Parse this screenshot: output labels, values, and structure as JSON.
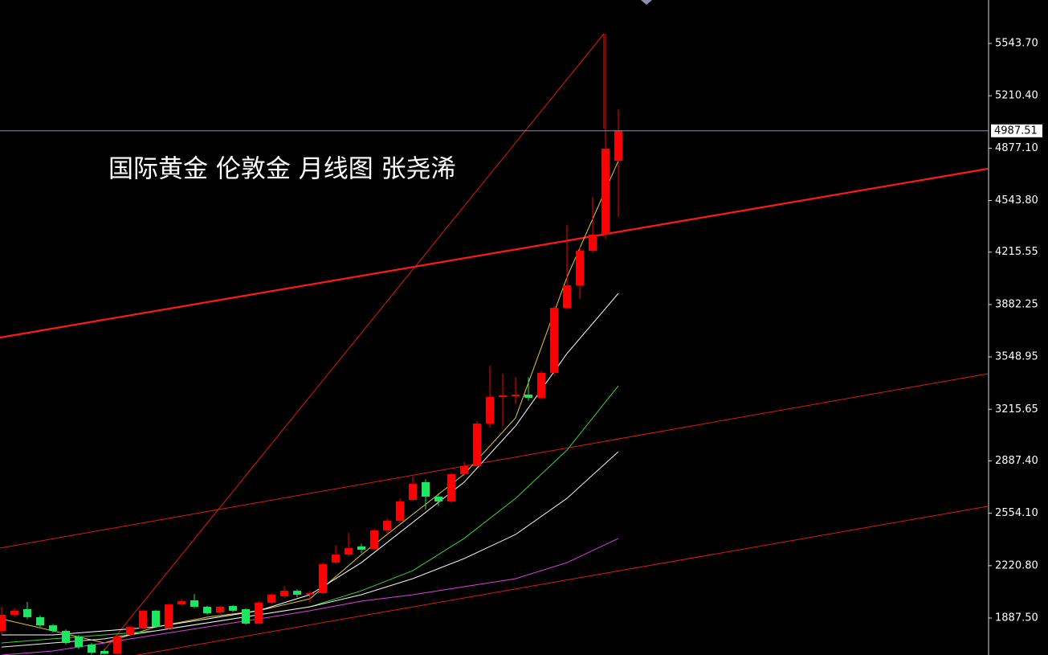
{
  "chart_data": {
    "type": "candlestick",
    "title": "国际黄金 伦敦金 月线图 张尧浠",
    "ylim": [
      1652.3,
      5819.8
    ],
    "yticks": [
      {
        "value": 5543.7,
        "label": "5543.70"
      },
      {
        "value": 5210.4,
        "label": "5210.40"
      },
      {
        "value": 4877.1,
        "label": "4877.10"
      },
      {
        "value": 4543.8,
        "label": "4543.80"
      },
      {
        "value": 4215.55,
        "label": "4215.55"
      },
      {
        "value": 3882.25,
        "label": "3882.25"
      },
      {
        "value": 3548.95,
        "label": "3548.95"
      },
      {
        "value": 3215.65,
        "label": "3215.65"
      },
      {
        "value": 2887.4,
        "label": "2887.40"
      },
      {
        "value": 2554.1,
        "label": "2554.10"
      },
      {
        "value": 2220.8,
        "label": "2220.80"
      },
      {
        "value": 1887.5,
        "label": "1887.50"
      }
    ],
    "current_price": 4987.51,
    "up_color": "#ff0000",
    "down_color": "#19e860",
    "open": [
      1806,
      1908,
      1944,
      1893,
      1841,
      1806,
      1770,
      1719,
      1678,
      1660,
      1780,
      1821,
      1934,
      1821,
      1974,
      2000,
      1959,
      1923,
      1964,
      1944,
      1852,
      1985,
      2026,
      2061,
      2036,
      2046,
      2240,
      2291,
      2343,
      2327,
      2445,
      2506,
      2639,
      2752,
      2660,
      2629,
      2803,
      2854,
      3125,
      3294,
      3299,
      3309,
      3289,
      3447,
      3861,
      4004,
      4224,
      4327,
      4797
    ],
    "high": [
      1959,
      1950,
      1990,
      1905,
      1850,
      1815,
      1780,
      1730,
      1690,
      1785,
      1840,
      1940,
      1940,
      1980,
      2010,
      2040,
      1965,
      1965,
      1970,
      1950,
      1995,
      2045,
      2090,
      2070,
      2060,
      2240,
      2350,
      2430,
      2360,
      2455,
      2520,
      2650,
      2790,
      2770,
      2680,
      2810,
      2880,
      3140,
      3493,
      3442,
      3420,
      3420,
      3460,
      3870,
      4388,
      4250,
      4567,
      5605,
      5124
    ],
    "low": [
      1780,
      1895,
      1880,
      1830,
      1795,
      1720,
      1690,
      1655,
      1655,
      1655,
      1770,
      1815,
      1825,
      1815,
      1965,
      1950,
      1910,
      1915,
      1925,
      1845,
      1845,
      1975,
      2015,
      2020,
      1990,
      2040,
      2230,
      2280,
      2300,
      2320,
      2420,
      2490,
      2630,
      2580,
      2600,
      2620,
      2790,
      2850,
      3100,
      3110,
      3250,
      3270,
      3280,
      3430,
      3850,
      3918,
      4210,
      4300,
      4439
    ],
    "close": [
      1908,
      1934,
      1893,
      1841,
      1806,
      1729,
      1703,
      1667,
      1660,
      1770,
      1831,
      1934,
      1831,
      1974,
      1995,
      1959,
      1918,
      1959,
      1934,
      1852,
      1985,
      2036,
      2061,
      2036,
      2046,
      2230,
      2291,
      2332,
      2322,
      2445,
      2506,
      2629,
      2741,
      2660,
      2629,
      2803,
      2854,
      3125,
      3294,
      3304,
      3309,
      3289,
      3447,
      3861,
      4004,
      4224,
      4327,
      4874,
      4987.51
    ],
    "ma_x": [
      0,
      4,
      8,
      12,
      16,
      20,
      24,
      28,
      32,
      36,
      40,
      44,
      48
    ],
    "ma_series": [
      {
        "color": "#e8c832",
        "values": [
          1882,
          1806,
          1729,
          1831,
          1893,
          1934,
          2010,
          2291,
          2547,
          2803,
          3161,
          4056,
          4797
        ]
      },
      {
        "color": "#ffffff",
        "values": [
          1780,
          1780,
          1806,
          1831,
          1882,
          1934,
          2036,
          2240,
          2496,
          2752,
          3110,
          3570,
          3953
        ]
      },
      {
        "color": "#3cd23c",
        "values": [
          1729,
          1755,
          1780,
          1806,
          1857,
          1908,
          1959,
          2061,
          2189,
          2394,
          2649,
          2956,
          3365
        ]
      },
      {
        "color": "#f0f0f0",
        "values": [
          1703,
          1729,
          1755,
          1806,
          1857,
          1908,
          1959,
          2036,
          2138,
          2266,
          2419,
          2649,
          2946
        ]
      },
      {
        "color": "#e040e0",
        "values": [
          1652,
          1678,
          1729,
          1780,
          1831,
          1882,
          1934,
          1995,
          2036,
          2087,
          2138,
          2240,
          2394
        ]
      }
    ]
  }
}
